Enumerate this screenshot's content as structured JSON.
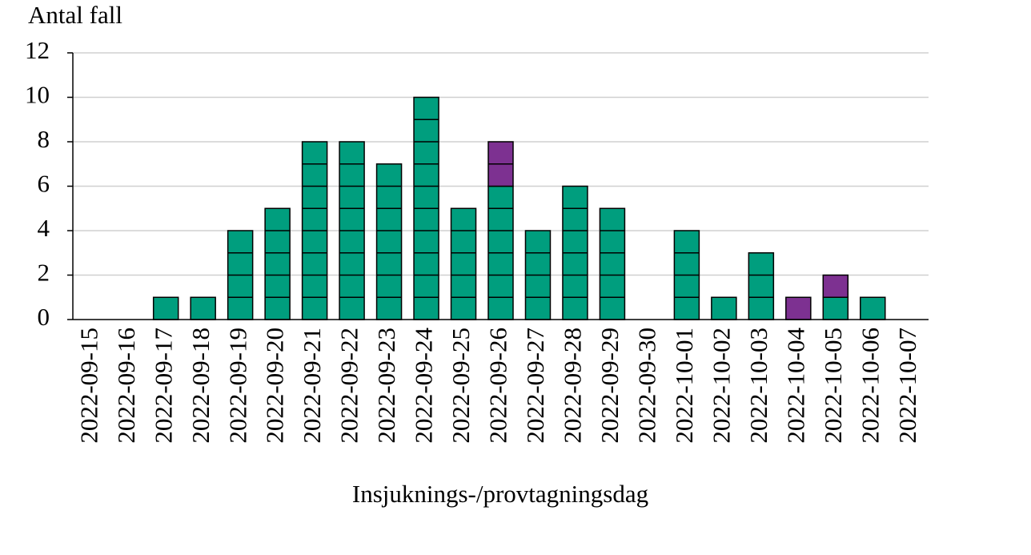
{
  "chart_data": {
    "type": "stacked_bar",
    "y_label": "Antal fall",
    "x_label": "Insjuknings-/provtagningsdag",
    "categories": [
      "2022-09-15",
      "2022-09-16",
      "2022-09-17",
      "2022-09-18",
      "2022-09-19",
      "2022-09-20",
      "2022-09-21",
      "2022-09-22",
      "2022-09-23",
      "2022-09-24",
      "2022-09-25",
      "2022-09-26",
      "2022-09-27",
      "2022-09-28",
      "2022-09-29",
      "2022-09-30",
      "2022-10-01",
      "2022-10-02",
      "2022-10-03",
      "2022-10-04",
      "2022-10-05",
      "2022-10-06",
      "2022-10-07"
    ],
    "series": [
      {
        "color": "#009e7e",
        "values": [
          0,
          0,
          1,
          1,
          4,
          5,
          8,
          8,
          7,
          10,
          5,
          6,
          4,
          6,
          5,
          0,
          4,
          1,
          3,
          0,
          1,
          1,
          0
        ]
      },
      {
        "color": "#7d3191",
        "values": [
          0,
          0,
          0,
          0,
          0,
          0,
          0,
          0,
          0,
          0,
          0,
          2,
          0,
          0,
          0,
          0,
          0,
          0,
          0,
          1,
          1,
          0,
          0
        ]
      }
    ],
    "ylim": [
      0,
      12
    ],
    "yticks": [
      0,
      2,
      4,
      6,
      8,
      10,
      12
    ],
    "grid": true
  }
}
